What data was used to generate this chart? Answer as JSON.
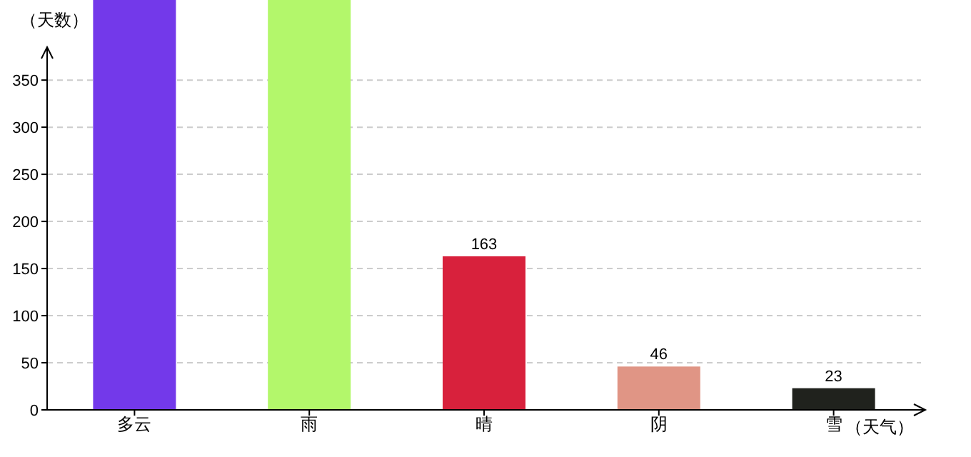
{
  "chart_data": {
    "type": "bar",
    "xlabel": "（天气）",
    "ylabel": "（天数）",
    "categories": [
      "多云",
      "雨",
      "晴",
      "阴",
      "雪"
    ],
    "values": [
      435,
      435,
      163,
      46,
      23
    ],
    "colors": [
      "#7339ea",
      "#b3f76b",
      "#d8213c",
      "#e09585",
      "#20221d"
    ],
    "value_labels": [
      null,
      null,
      "163",
      "46",
      "23"
    ],
    "ylim": [
      0,
      435
    ],
    "yticks": [
      0,
      50,
      100,
      150,
      200,
      250,
      300,
      350
    ],
    "grid": "y"
  }
}
